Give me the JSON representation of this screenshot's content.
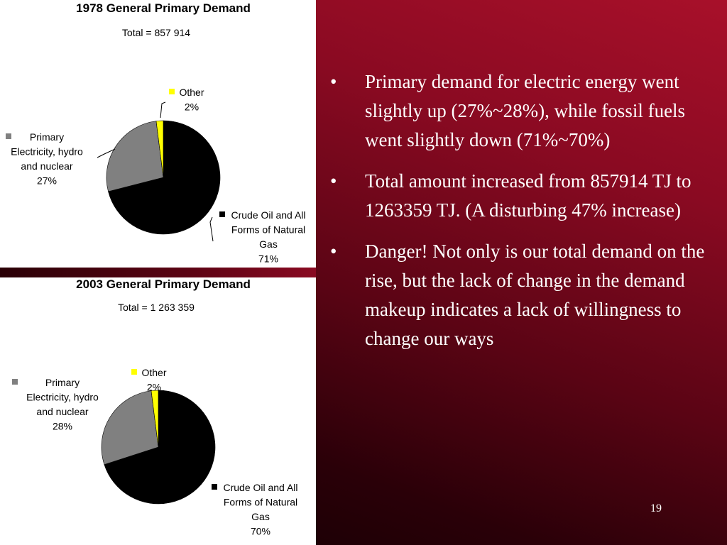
{
  "slide": {
    "bullet_marker": "•",
    "bullets": [
      "Primary demand for electric energy went slightly up (27%~28%), while fossil fuels went slightly down (71%~70%)",
      "Total amount increased from 857914 TJ to 1263359 TJ. (A disturbing 47% increase)",
      "Danger! Not only is our total demand on the rise, but the lack of change in the demand makeup indicates a lack of willingness to change our ways"
    ],
    "page_number": "19"
  },
  "chart_data": [
    {
      "type": "pie",
      "title": "1978 General Primary Demand",
      "subtitle": "Total = 857 914",
      "slices": [
        {
          "label_lines": [
            "Crude Oil and All",
            "Forms of Natural",
            "Gas"
          ],
          "pct_label": "71%",
          "value": 71,
          "color": "#000000"
        },
        {
          "label_lines": [
            "Primary",
            "Electricity, hydro",
            "and nuclear"
          ],
          "pct_label": "27%",
          "value": 27,
          "color": "#808080"
        },
        {
          "label_lines": [
            "Other"
          ],
          "pct_label": "2%",
          "value": 2,
          "color": "#ffff00"
        }
      ]
    },
    {
      "type": "pie",
      "title": "2003 General Primary Demand",
      "subtitle": "Total = 1 263 359",
      "slices": [
        {
          "label_lines": [
            "Crude Oil and All",
            "Forms of Natural",
            "Gas"
          ],
          "pct_label": "70%",
          "value": 70,
          "color": "#000000"
        },
        {
          "label_lines": [
            "Primary",
            "Electricity, hydro",
            "and nuclear"
          ],
          "pct_label": "28%",
          "value": 28,
          "color": "#808080"
        },
        {
          "label_lines": [
            "Other"
          ],
          "pct_label": "2%",
          "value": 2,
          "color": "#ffff00"
        }
      ]
    }
  ]
}
